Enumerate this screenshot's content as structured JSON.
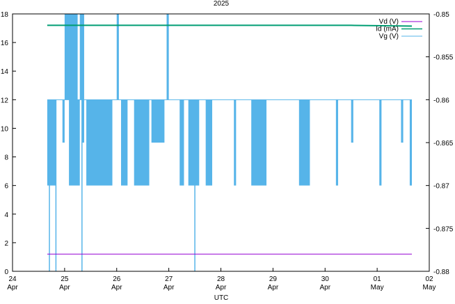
{
  "chart_data": {
    "type": "line",
    "title": "2025",
    "xlabel": "UTC",
    "ylabel_left": "",
    "ylabel_right": "",
    "x_ticks": [
      {
        "day": "24",
        "month": "Apr"
      },
      {
        "day": "25",
        "month": "Apr"
      },
      {
        "day": "26",
        "month": "Apr"
      },
      {
        "day": "27",
        "month": "Apr"
      },
      {
        "day": "28",
        "month": "Apr"
      },
      {
        "day": "29",
        "month": "Apr"
      },
      {
        "day": "30",
        "month": "Apr"
      },
      {
        "day": "01",
        "month": "May"
      },
      {
        "day": "02",
        "month": "May"
      }
    ],
    "xlim": [
      "2025-04-24",
      "2025-05-02"
    ],
    "ylim_left": [
      0,
      18
    ],
    "y_ticks_left": [
      "0",
      "2",
      "4",
      "6",
      "8",
      "10",
      "12",
      "14",
      "16",
      "18"
    ],
    "ylim_right": [
      -0.88,
      -0.85
    ],
    "y_ticks_right": [
      "-0.88",
      "-0.875",
      "-0.87",
      "-0.865",
      "-0.86",
      "-0.855",
      "-0.85"
    ],
    "grid": false,
    "legend_position": "top-right",
    "series": [
      {
        "name": "Vd (V)",
        "axis": "left",
        "color": "#9400d3",
        "x": [
          "2025-04-24 16:00",
          "2025-05-01 16:00"
        ],
        "y": [
          1.2,
          1.2
        ]
      },
      {
        "name": "Id (mA)",
        "axis": "left",
        "color": "#009e73",
        "x": [
          "2025-04-24 16:00",
          "2025-04-25 12:00",
          "2025-04-26 12:00",
          "2025-04-27 12:00",
          "2025-04-28 12:00",
          "2025-04-29 12:00",
          "2025-04-30 12:00",
          "2025-05-01 16:00"
        ],
        "y": [
          17.2,
          17.2,
          17.2,
          17.2,
          17.2,
          17.2,
          17.2,
          17.15
        ]
      },
      {
        "name": "Vg (V)",
        "axis": "right",
        "color": "#56b4e9",
        "baseline": -0.86,
        "x_start": "2025-04-24 16:00",
        "x_end": "2025-05-01 16:00",
        "band_low": -0.87,
        "dips": [
          {
            "from": "2025-04-24 16:00",
            "to": "2025-04-24 20:00",
            "low": -0.87
          },
          {
            "from": "2025-04-24 23:00",
            "to": "2025-04-25 00:00",
            "low": -0.865
          },
          {
            "from": "2025-04-25 02:00",
            "to": "2025-04-25 07:00",
            "low": -0.87
          },
          {
            "from": "2025-04-25 08:00",
            "to": "2025-04-25 09:00",
            "low": -0.865
          },
          {
            "from": "2025-04-25 10:00",
            "to": "2025-04-25 22:00",
            "low": -0.87
          },
          {
            "from": "2025-04-26 02:00",
            "to": "2025-04-26 05:00",
            "low": -0.87
          },
          {
            "from": "2025-04-26 08:00",
            "to": "2025-04-26 15:00",
            "low": -0.87
          },
          {
            "from": "2025-04-26 16:00",
            "to": "2025-04-26 22:00",
            "low": -0.865
          },
          {
            "from": "2025-04-27 05:00",
            "to": "2025-04-27 07:00",
            "low": -0.87
          },
          {
            "from": "2025-04-27 09:00",
            "to": "2025-04-27 14:00",
            "low": -0.87
          },
          {
            "from": "2025-04-27 17:00",
            "to": "2025-04-27 20:00",
            "low": -0.87
          },
          {
            "from": "2025-04-28 06:00",
            "to": "2025-04-28 07:00",
            "low": -0.87
          },
          {
            "from": "2025-04-28 14:00",
            "to": "2025-04-28 21:00",
            "low": -0.87
          },
          {
            "from": "2025-04-29 12:00",
            "to": "2025-04-29 17:00",
            "low": -0.87
          },
          {
            "from": "2025-04-30 05:00",
            "to": "2025-04-30 06:00",
            "low": -0.87
          },
          {
            "from": "2025-04-30 12:00",
            "to": "2025-04-30 13:00",
            "low": -0.865
          },
          {
            "from": "2025-05-01 01:00",
            "to": "2025-05-01 02:00",
            "low": -0.87
          },
          {
            "from": "2025-05-01 11:00",
            "to": "2025-05-01 12:00",
            "low": -0.865
          },
          {
            "from": "2025-05-01 15:00",
            "to": "2025-05-01 16:00",
            "low": -0.87
          }
        ],
        "spikes_up": [
          {
            "from": "2025-04-25 00:00",
            "to": "2025-04-25 06:00",
            "high": -0.85
          },
          {
            "from": "2025-04-25 07:00",
            "to": "2025-04-25 09:00",
            "high": -0.85
          },
          {
            "from": "2025-04-26 00:00",
            "to": "2025-04-26 01:00",
            "high": -0.85
          },
          {
            "from": "2025-04-26 23:00",
            "to": "2025-04-27 00:00",
            "high": -0.85
          }
        ],
        "spikes_down": [
          {
            "at": "2025-04-24 17:00",
            "low": -0.88
          },
          {
            "at": "2025-04-24 20:00",
            "low": -0.88
          },
          {
            "at": "2025-04-25 08:00",
            "low": -0.88
          },
          {
            "at": "2025-04-27 12:00",
            "low": -0.88
          }
        ]
      }
    ]
  }
}
